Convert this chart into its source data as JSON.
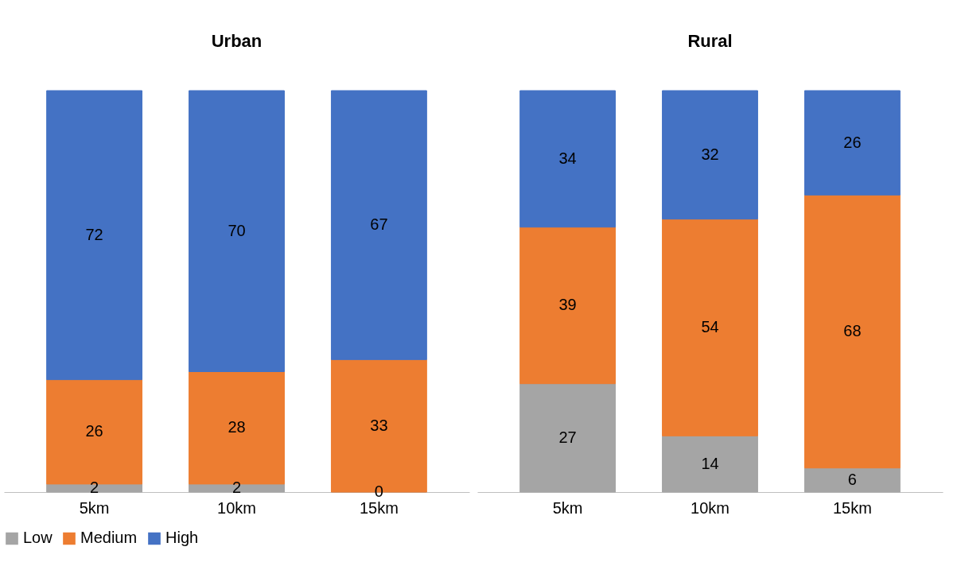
{
  "chart_data": [
    {
      "type": "bar",
      "title": "Urban",
      "categories": [
        "5km",
        "10km",
        "15km"
      ],
      "stacked": true,
      "ylim": [
        0,
        100
      ],
      "tick_labels": "x",
      "grid": false,
      "legend": "bottom",
      "series": [
        {
          "name": "Low",
          "color": "#a5a5a5",
          "values": [
            2,
            2,
            0
          ],
          "value_labels": [
            "2",
            "2",
            "0"
          ]
        },
        {
          "name": "Medium",
          "color": "#ed7d31",
          "values": [
            26,
            28,
            33
          ],
          "value_labels": [
            "26",
            "28",
            "33"
          ]
        },
        {
          "name": "High",
          "color": "#4472c4",
          "values": [
            72,
            70,
            67
          ],
          "value_labels": [
            "72",
            "70",
            "67"
          ]
        }
      ]
    },
    {
      "type": "bar",
      "title": "Rural",
      "categories": [
        "5km",
        "10km",
        "15km"
      ],
      "stacked": true,
      "data_labels": true,
      "ylim": [
        0,
        100
      ],
      "tick_labels": "x",
      "grid": false,
      "legend": "bottom",
      "series": [
        {
          "name": "Low",
          "color": "#a5a5a5",
          "values": [
            27,
            14,
            6
          ]
        },
        {
          "name": "Medium",
          "color": "#ed7d31",
          "values": [
            39,
            54,
            68
          ]
        },
        {
          "name": "High",
          "color": "#4472c4",
          "values": [
            34,
            32,
            26
          ]
        }
      ]
    }
  ]
}
